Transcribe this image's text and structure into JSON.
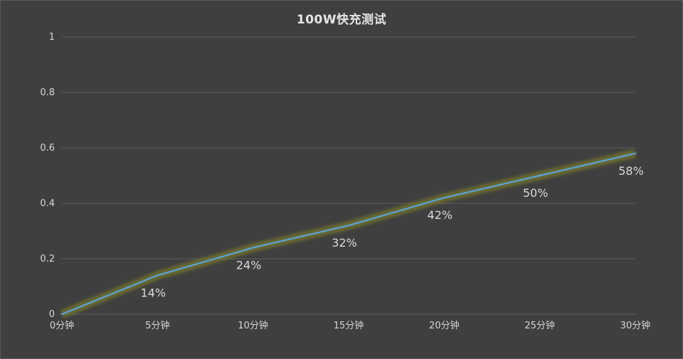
{
  "chart_data": {
    "type": "line",
    "title": "100W快充测试",
    "xlabel": "",
    "ylabel": "",
    "categories": [
      "0分钟",
      "5分钟",
      "10分钟",
      "15分钟",
      "20分钟",
      "25分钟",
      "30分钟"
    ],
    "series": [
      {
        "name": "",
        "values": [
          0,
          0.14,
          0.24,
          0.32,
          0.42,
          0.5,
          0.58
        ],
        "data_labels": [
          "",
          "14%",
          "24%",
          "32%",
          "42%",
          "50%",
          "58%"
        ],
        "color": "#5ba3d6",
        "glow_color": "#8a8a2a"
      }
    ],
    "yticks": [
      "0",
      "0.2",
      "0.4",
      "0.6",
      "0.8",
      "1"
    ],
    "ylim": [
      0,
      1
    ],
    "grid": true,
    "legend": "none",
    "background": "#3f3f3f",
    "gridline_color": "#5c5c5c"
  }
}
